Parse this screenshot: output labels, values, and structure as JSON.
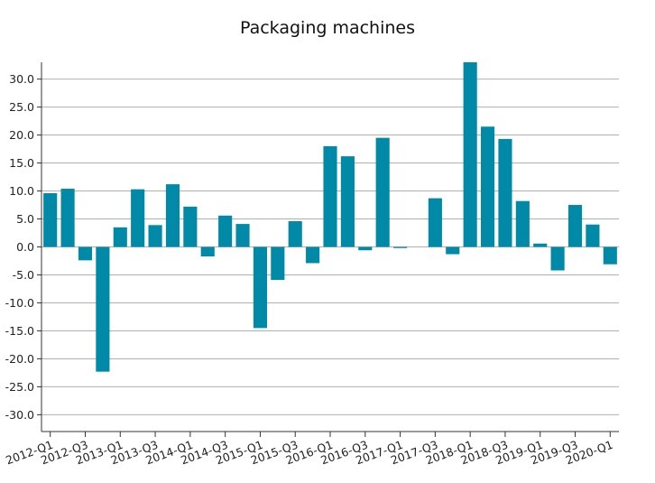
{
  "chart_data": {
    "type": "bar",
    "title": "Packaging machines",
    "xlabel": "",
    "ylabel": "",
    "ylim": [
      -33,
      33
    ],
    "yticks": [
      30,
      25,
      20,
      15,
      10,
      5,
      0,
      -5,
      -10,
      -15,
      -20,
      -25,
      -30
    ],
    "ytick_labels": [
      "30.0",
      "25.0",
      "20.0",
      "15.0",
      "10.0",
      "5.0",
      "0.0",
      "-5.0",
      "-10.0",
      "-15.0",
      "-20.0",
      "-25.0",
      "-30.0"
    ],
    "grid": true,
    "legend": "none",
    "bar_color": "#008aa8",
    "categories": [
      "2012-Q1",
      "2012-Q2",
      "2012-Q3",
      "2012-Q4",
      "2013-Q1",
      "2013-Q2",
      "2013-Q3",
      "2013-Q4",
      "2014-Q1",
      "2014-Q2",
      "2014-Q3",
      "2014-Q4",
      "2015-Q1",
      "2015-Q2",
      "2015-Q3",
      "2015-Q4",
      "2016-Q1",
      "2016-Q2",
      "2016-Q3",
      "2016-Q4",
      "2017-Q1",
      "2017-Q2",
      "2017-Q3",
      "2017-Q4",
      "2018-Q1",
      "2018-Q2",
      "2018-Q3",
      "2018-Q4",
      "2019-Q1",
      "2019-Q2",
      "2019-Q3",
      "2019-Q4",
      "2020-Q1"
    ],
    "values": [
      9.6,
      10.4,
      -2.4,
      -22.3,
      3.5,
      10.3,
      3.9,
      11.2,
      7.2,
      -1.7,
      5.6,
      4.1,
      -14.5,
      -5.9,
      4.6,
      -2.9,
      18.0,
      16.2,
      -0.6,
      19.5,
      -0.2,
      0.0,
      8.7,
      -1.3,
      33.5,
      21.5,
      19.3,
      8.2,
      0.6,
      -4.2,
      7.5,
      4.0,
      -3.1
    ],
    "xtick_labels": [
      "2012-Q1",
      "2012-Q3",
      "2013-Q1",
      "2013-Q3",
      "2014-Q1",
      "2014-Q3",
      "2015-Q1",
      "2015-Q3",
      "2016-Q1",
      "2016-Q3",
      "2017-Q1",
      "2017-Q3",
      "2018-Q1",
      "2018-Q3",
      "2019-Q1",
      "2019-Q3",
      "2020-Q1"
    ],
    "xtick_positions": [
      "2012-Q1",
      "2012-Q3",
      "2013-Q1",
      "2013-Q3",
      "2014-Q1",
      "2014-Q3",
      "2015-Q1",
      "2015-Q3",
      "2016-Q1",
      "2016-Q3",
      "2017-Q1",
      "2017-Q3",
      "2018-Q1",
      "2018-Q3",
      "2019-Q1",
      "2019-Q3",
      "2020-Q1"
    ]
  }
}
